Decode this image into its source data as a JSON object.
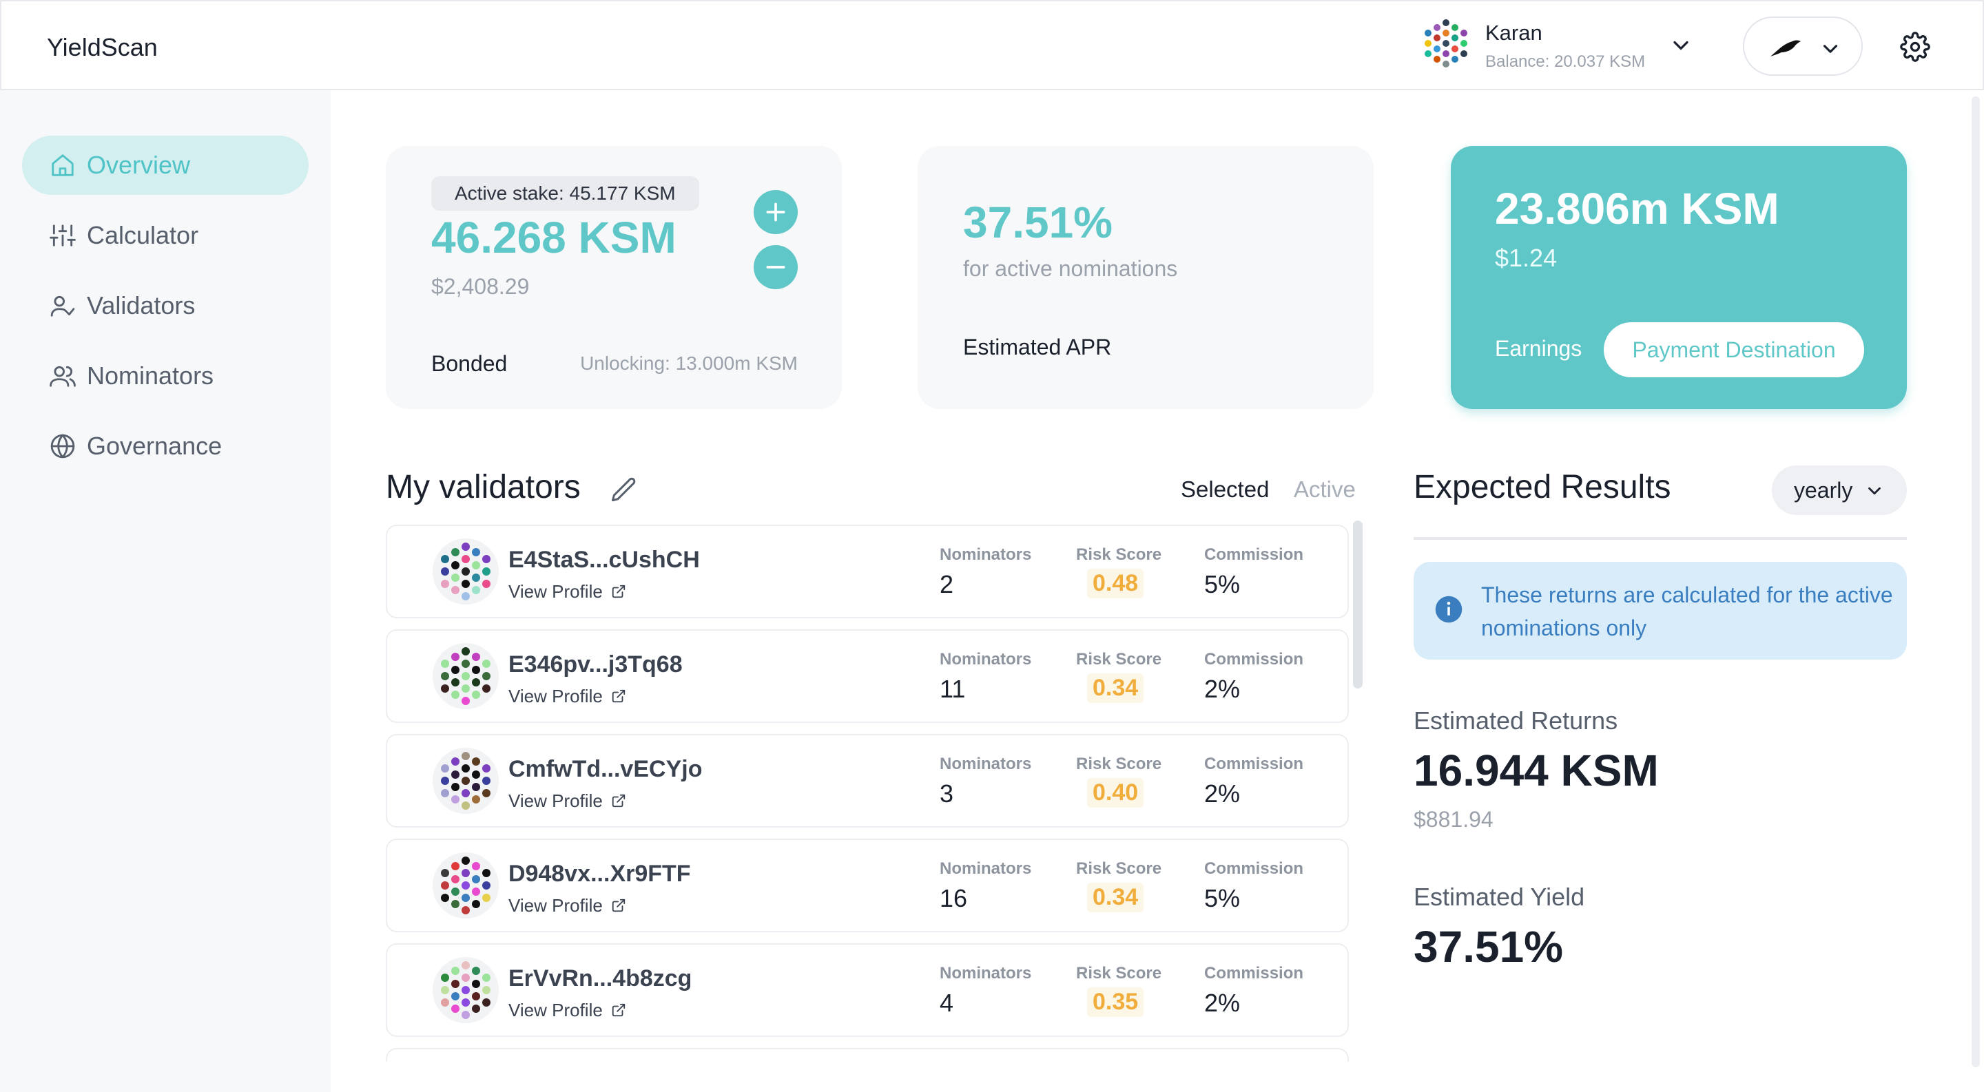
{
  "app": {
    "name": "YieldScan"
  },
  "account": {
    "name": "Karan",
    "balance": "Balance: 20.037 KSM"
  },
  "sidebar": {
    "items": [
      {
        "label": "Overview",
        "icon": "home-icon",
        "active": true
      },
      {
        "label": "Calculator",
        "icon": "sliders-icon",
        "active": false
      },
      {
        "label": "Validators",
        "icon": "user-check-icon",
        "active": false
      },
      {
        "label": "Nominators",
        "icon": "users-icon",
        "active": false
      },
      {
        "label": "Governance",
        "icon": "globe-icon",
        "active": false
      }
    ]
  },
  "stake": {
    "active_stake": "Active stake: 45.177 KSM",
    "bonded_amount": "46.268 KSM",
    "bonded_fiat": "$2,408.29",
    "bonded_label": "Bonded",
    "unlocking": "Unlocking: 13.000m KSM"
  },
  "apr": {
    "value": "37.51%",
    "subtitle": "for active nominations",
    "label": "Estimated APR"
  },
  "earnings": {
    "amount": "23.806m KSM",
    "fiat": "$1.24",
    "label": "Earnings",
    "payment_destination": "Payment Destination"
  },
  "validators": {
    "title": "My validators",
    "tabs": {
      "selected": "Selected",
      "active": "Active"
    },
    "col_nominators": "Nominators",
    "col_risk": "Risk Score",
    "col_commission": "Commission",
    "view_profile": "View Profile",
    "rows": [
      {
        "name": "E4StaS...cUshCH",
        "nominators": "2",
        "risk": "0.48",
        "commission": "5%"
      },
      {
        "name": "E346pv...j3Tq68",
        "nominators": "11",
        "risk": "0.34",
        "commission": "2%"
      },
      {
        "name": "CmfwTd...vECYjo",
        "nominators": "3",
        "risk": "0.40",
        "commission": "2%"
      },
      {
        "name": "D948vx...Xr9FTF",
        "nominators": "16",
        "risk": "0.34",
        "commission": "5%"
      },
      {
        "name": "ErVvRn...4b8zcg",
        "nominators": "4",
        "risk": "0.35",
        "commission": "2%"
      }
    ]
  },
  "expected": {
    "title": "Expected Results",
    "period": "yearly",
    "info": "These returns are calculated for the active nominations only",
    "returns_label": "Estimated Returns",
    "returns_value": "16.944 KSM",
    "returns_fiat": "$881.94",
    "yield_label": "Estimated Yield",
    "yield_value": "37.51%"
  },
  "colors": {
    "accent": "#60c7c8",
    "risk": "#f0ad3c",
    "info_bg": "#d8ecfa",
    "info_text": "#3a7ec0"
  }
}
